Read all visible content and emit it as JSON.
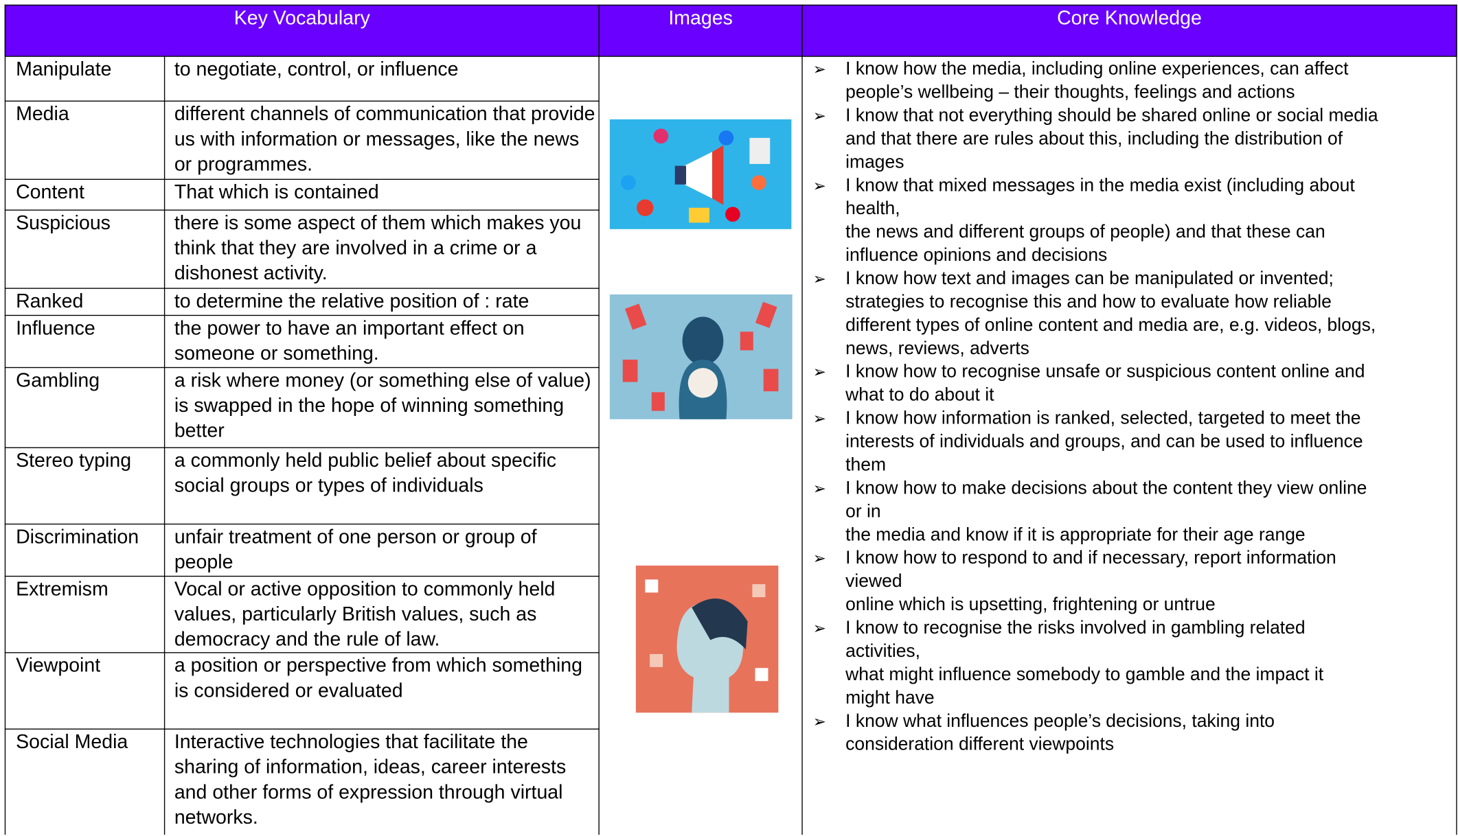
{
  "header": {
    "vocabulary": "Key Vocabulary",
    "images": "Images",
    "knowledge": "Core Knowledge"
  },
  "vocabulary": [
    {
      "term": "Manipulate",
      "definition": "to negotiate, control, or influence"
    },
    {
      "term": "Media",
      "definition": "different channels of communication that provide us with information or messages, like the news or programmes."
    },
    {
      "term": "Content",
      "definition": "That which is contained"
    },
    {
      "term": "Suspicious",
      "definition": "there is some aspect of them which makes you think that they are involved in a crime or a dishonest activity."
    },
    {
      "term": "Ranked",
      "definition": "to determine the relative position of : rate"
    },
    {
      "term": "Influence",
      "definition": "the power to have an important effect on someone or something."
    },
    {
      "term": "Gambling",
      "definition": "a risk where money (or something else of value) is swapped in the hope of winning something better"
    },
    {
      "term": "Stereo typing",
      "definition": "a commonly held public belief about specific social groups or types of individuals"
    },
    {
      "term": "Discrimination",
      "definition": "unfair treatment of one person or group of people"
    },
    {
      "term": "Extremism",
      "definition": "Vocal or active opposition to commonly held values, particularly British values, such as democracy and the rule of law."
    },
    {
      "term": "Viewpoint",
      "definition": "a position or perspective from which something is considered or evaluated"
    },
    {
      "term": "Social Media",
      "definition": "Interactive technologies that facilitate the sharing of information, ideas, career interests and other forms of expression through virtual networks."
    }
  ],
  "knowledge": [
    [
      "I know how the media, including online experiences, can affect",
      "people’s wellbeing – their thoughts, feelings and actions"
    ],
    [
      "I know that not everything should be shared online or social media",
      "and that there are rules about this, including the distribution of",
      "images"
    ],
    [
      "I know that mixed messages in the media exist (including about",
      "health,",
      "the news and different groups of people) and that these can",
      "influence opinions and decisions"
    ],
    [
      "I know how text and images can be manipulated or invented;",
      "strategies to recognise this and how to evaluate how reliable",
      "different types of online content and media are, e.g. videos, blogs,",
      "news, reviews, adverts"
    ],
    [
      "I know how to recognise unsafe or suspicious content online and",
      "what to do about it"
    ],
    [
      "I know how information is ranked, selected, targeted to meet the",
      "interests of individuals and groups, and can be used to influence",
      "them"
    ],
    [
      "I know how to make decisions about the content they view online",
      "or in",
      "the media and know if it is appropriate for their age range"
    ],
    [
      "I know how to respond to and if necessary, report information",
      "viewed",
      "online which is upsetting, frightening or untrue"
    ],
    [
      "I know to recognise the risks involved in gambling related",
      "activities,",
      "what might influence somebody to gamble and the impact it",
      "might have"
    ],
    [
      "I know what influences people’s decisions, taking into",
      "consideration different viewpoints"
    ]
  ]
}
